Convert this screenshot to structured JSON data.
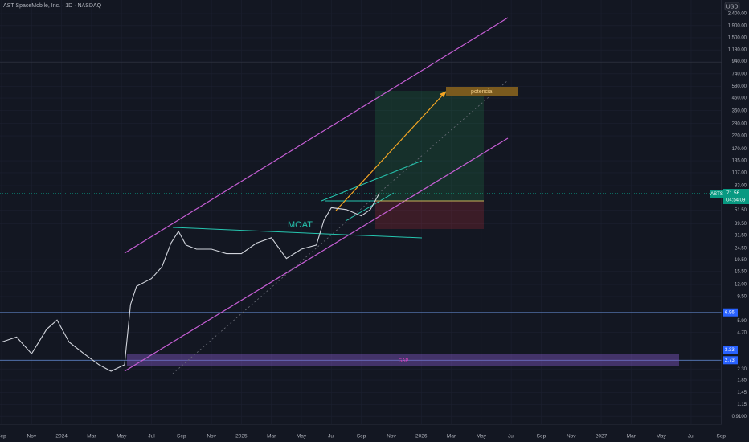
{
  "chart_data": {
    "type": "line",
    "title": "AST SpaceMobile, Inc. · 1D · NASDAQ",
    "symbol": "ASTS",
    "currency": "USD",
    "countdown": "04:54:09",
    "log_scale": true,
    "color": "#d1d4dc",
    "x": [
      0,
      1,
      2,
      3,
      3.7,
      4.5,
      5.5,
      6.5,
      7.3,
      8.2,
      8.6,
      9,
      10,
      10.7,
      11.3,
      11.8,
      12.3,
      13,
      14,
      15,
      16,
      17,
      18,
      19,
      20,
      21,
      21.5,
      22,
      23,
      24,
      24.6,
      25.2
    ],
    "values": [
      3.9,
      4.3,
      3.1,
      5.0,
      6.0,
      3.9,
      3.1,
      2.5,
      2.2,
      2.5,
      8.1,
      11.6,
      13.5,
      17,
      27,
      34,
      26,
      24,
      24,
      22,
      22,
      27,
      30,
      20,
      24,
      26,
      42,
      54,
      52,
      46,
      52,
      71.56
    ],
    "xlim": [
      -0.107,
      48.04
    ],
    "xticks": [
      {
        "value": 0,
        "label": "Sep"
      },
      {
        "value": 2,
        "label": "Nov"
      },
      {
        "value": 4,
        "label": "2024"
      },
      {
        "value": 6,
        "label": "Mar"
      },
      {
        "value": 8,
        "label": "May"
      },
      {
        "value": 10,
        "label": "Jul"
      },
      {
        "value": 12,
        "label": "Sep"
      },
      {
        "value": 14,
        "label": "Nov"
      },
      {
        "value": 16,
        "label": "2025"
      },
      {
        "value": 18,
        "label": "Mar"
      },
      {
        "value": 20,
        "label": "May"
      },
      {
        "value": 22,
        "label": "Jul"
      },
      {
        "value": 24,
        "label": "Sep"
      },
      {
        "value": 26,
        "label": "Nov"
      },
      {
        "value": 28,
        "label": "2026"
      },
      {
        "value": 30,
        "label": "Mar"
      },
      {
        "value": 32,
        "label": "May"
      },
      {
        "value": 34,
        "label": "Jul"
      },
      {
        "value": 36,
        "label": "Sep"
      },
      {
        "value": 38,
        "label": "Nov"
      },
      {
        "value": 40,
        "label": "2027"
      },
      {
        "value": 42,
        "label": "Mar"
      },
      {
        "value": 44,
        "label": "May"
      },
      {
        "value": 46,
        "label": "Jul"
      },
      {
        "value": 48,
        "label": "Sep"
      }
    ],
    "ylim": [
      0.78,
      3135
    ],
    "yticks": [
      {
        "value": 2400,
        "label": "2,400.00"
      },
      {
        "value": 1900,
        "label": "1,900.00"
      },
      {
        "value": 1500,
        "label": "1,500.00"
      },
      {
        "value": 1180,
        "label": "1,180.00"
      },
      {
        "value": 940,
        "label": "940.00"
      },
      {
        "value": 740,
        "label": "740.00"
      },
      {
        "value": 580,
        "label": "580.00"
      },
      {
        "value": 460,
        "label": "460.00"
      },
      {
        "value": 360,
        "label": "360.00"
      },
      {
        "value": 280,
        "label": "280.00"
      },
      {
        "value": 220,
        "label": "220.00"
      },
      {
        "value": 170,
        "label": "170.00"
      },
      {
        "value": 135,
        "label": "135.00"
      },
      {
        "value": 107,
        "label": "107.00"
      },
      {
        "value": 83,
        "label": "83.00"
      },
      {
        "value": 51.5,
        "label": "51.50"
      },
      {
        "value": 39.5,
        "label": "39.50"
      },
      {
        "value": 31.5,
        "label": "31.50"
      },
      {
        "value": 24.5,
        "label": "24.50"
      },
      {
        "value": 19.5,
        "label": "19.50"
      },
      {
        "value": 15.5,
        "label": "15.50"
      },
      {
        "value": 12,
        "label": "12.00"
      },
      {
        "value": 9.5,
        "label": "9.50"
      },
      {
        "value": 5.9,
        "label": "5.90"
      },
      {
        "value": 4.7,
        "label": "4.70"
      },
      {
        "value": 2.3,
        "label": "2.30"
      },
      {
        "value": 1.85,
        "label": "1.85"
      },
      {
        "value": 1.45,
        "label": "1.45"
      },
      {
        "value": 1.15,
        "label": "1.15"
      },
      {
        "value": 0.91,
        "label": "0.9100"
      }
    ],
    "levels": [
      6.96,
      3.33,
      2.73
    ],
    "annotations": [
      "MOAT",
      "potencial",
      "GAP"
    ]
  }
}
